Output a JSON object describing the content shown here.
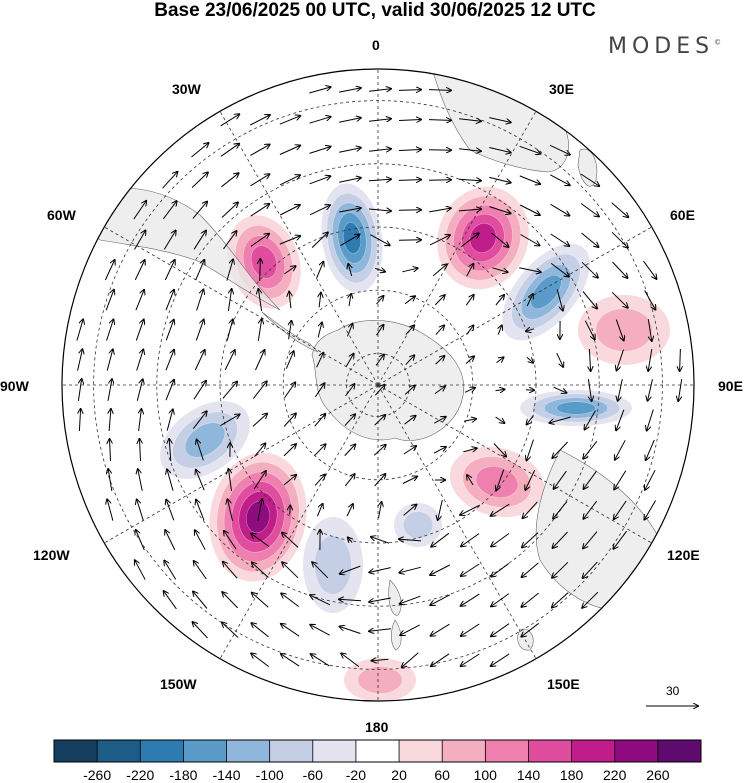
{
  "title": "Base 23/06/2025 00 UTC, valid 30/06/2025 12 UTC",
  "brand": "MODES",
  "brand_mark": "©",
  "longitude_labels": {
    "lon_0": "0",
    "lon_30e": "30E",
    "lon_60e": "60E",
    "lon_90e": "90E",
    "lon_120e": "120E",
    "lon_150e": "150E",
    "lon_180": "180",
    "lon_150w": "150W",
    "lon_120w": "120W",
    "lon_90w": "90W",
    "lon_60w": "60W",
    "lon_30w": "30W"
  },
  "reference_vector_label": "30",
  "colorbar": {
    "ticks": [
      "-260",
      "-220",
      "-180",
      "-140",
      "-100",
      "-60",
      "-20",
      "20",
      "60",
      "100",
      "140",
      "180",
      "220",
      "260"
    ],
    "colors": [
      "#163f5f",
      "#1e5c88",
      "#2d7bb0",
      "#5a9bca",
      "#8fb6db",
      "#c4cfe6",
      "#e4e4f1",
      "#ffffff",
      "#f9d9dd",
      "#f5aec0",
      "#ee7fae",
      "#e04d9f",
      "#bf1d8a",
      "#8e0c7f",
      "#5e0a6e"
    ]
  },
  "map": {
    "land_color": "#e8e8e8",
    "ocean_color": "#ffffff",
    "anomalies": [
      {
        "id": "a1",
        "value": -200
      },
      {
        "id": "a2",
        "value": 180
      },
      {
        "id": "a3",
        "value": 160
      },
      {
        "id": "a4",
        "value": -160
      },
      {
        "id": "a5",
        "value": 80
      },
      {
        "id": "a6",
        "value": -130
      },
      {
        "id": "a7",
        "value": 120
      },
      {
        "id": "a8",
        "value": -170
      },
      {
        "id": "a9",
        "value": 240
      },
      {
        "id": "a10",
        "value": -90
      },
      {
        "id": "a11",
        "value": -90
      },
      {
        "id": "a12",
        "value": 60
      }
    ]
  }
}
